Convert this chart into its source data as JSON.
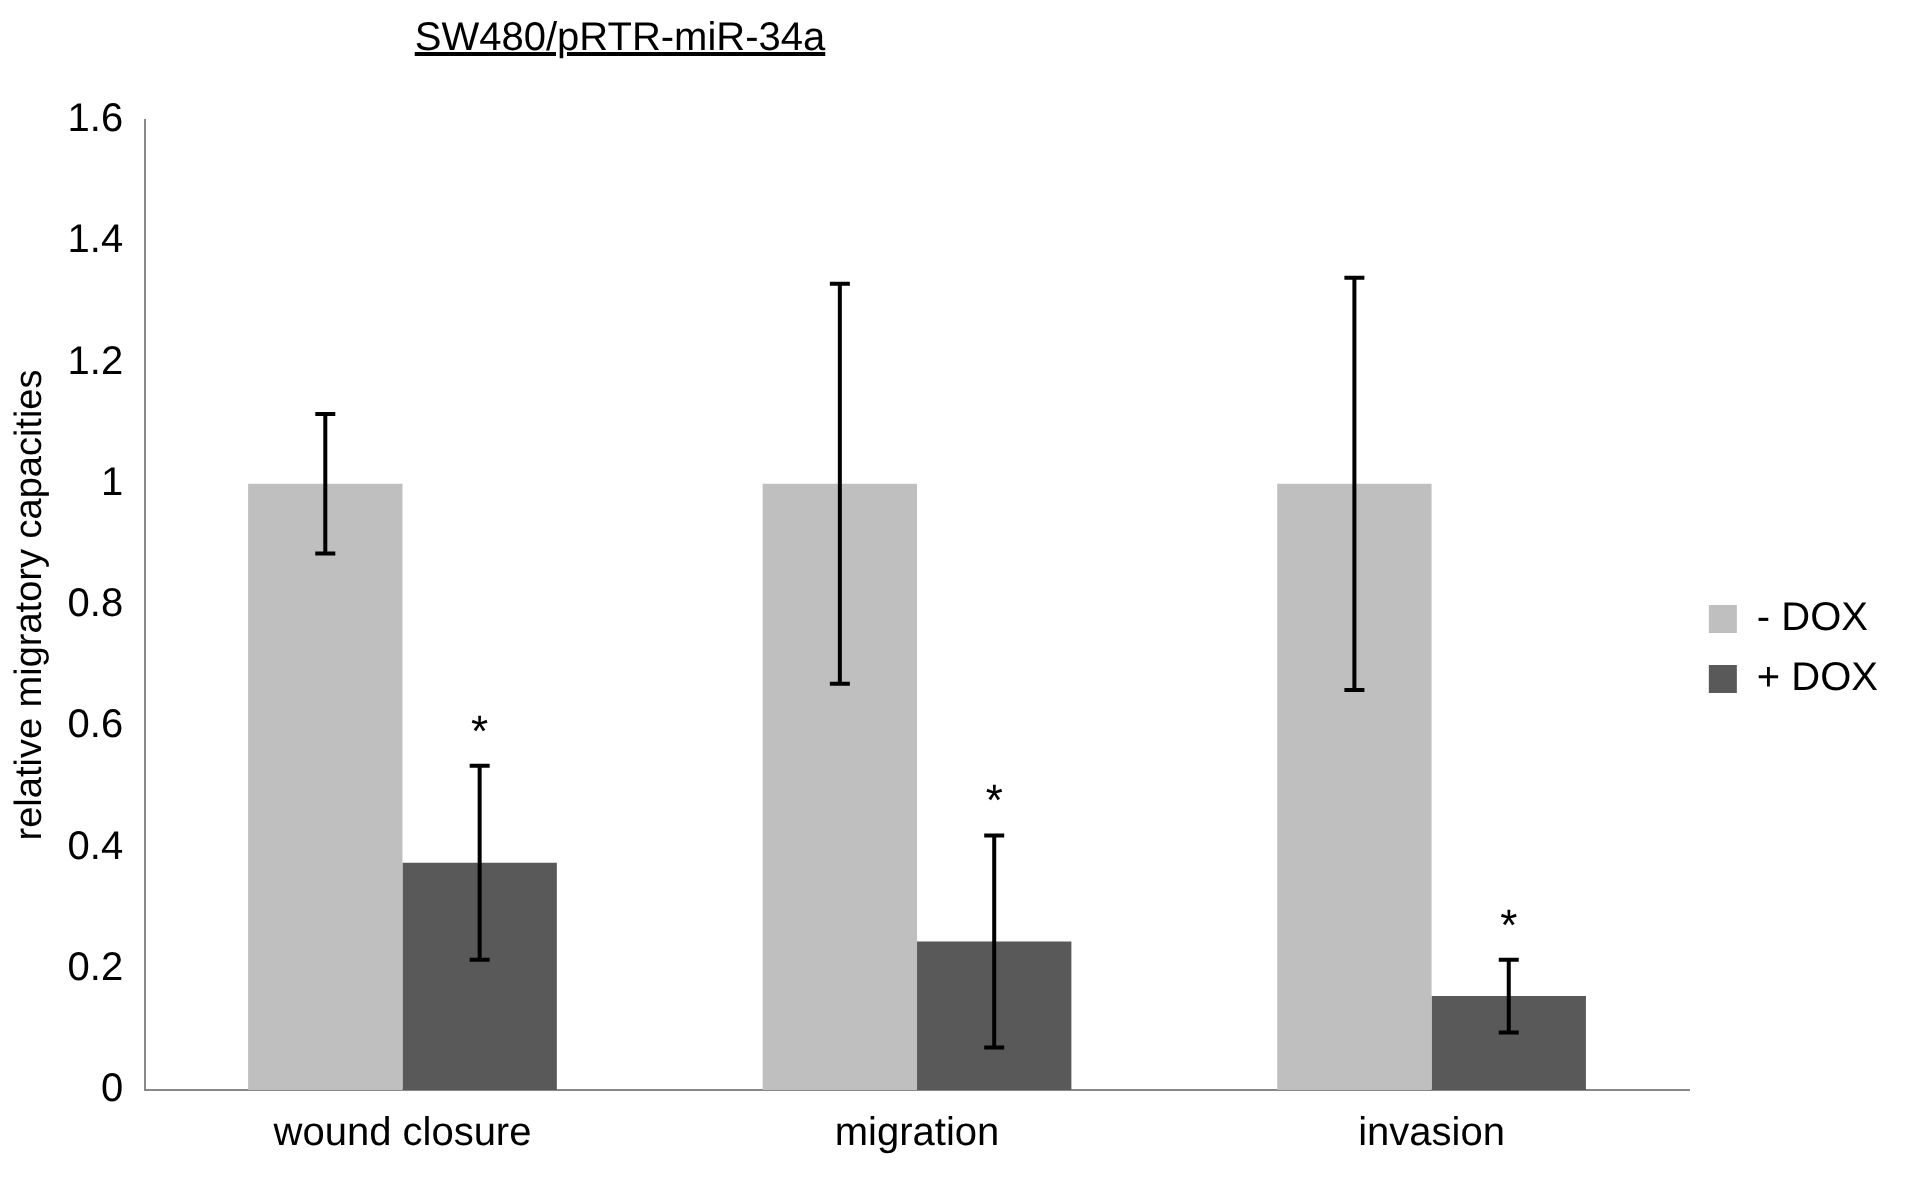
{
  "chart_data": {
    "type": "bar",
    "title": "SW480/pRTR-miR-34a",
    "ylabel": "relative migratory capacities",
    "categories": [
      "wound closure",
      "migration",
      "invasion"
    ],
    "series": [
      {
        "name": "- DOX",
        "color": "#bfbfbf",
        "values": [
          1,
          1,
          1
        ],
        "errors": [
          0.115,
          0.33,
          0.34
        ]
      },
      {
        "name": "+ DOX",
        "color": "#595959",
        "values": [
          0.375,
          0.245,
          0.155
        ],
        "errors": [
          0.16,
          0.175,
          0.06
        ]
      }
    ],
    "ylim": [
      0,
      1.6
    ],
    "yticks": [
      0,
      0.2,
      0.4,
      0.6,
      0.8,
      1,
      1.2,
      1.4,
      1.6
    ],
    "grid": false,
    "legend": "right",
    "annotations": [
      {
        "text": "*",
        "x": "wound closure",
        "y": 0.535
      },
      {
        "text": "*",
        "x": "migration",
        "y": 0.42
      },
      {
        "text": "*",
        "x": "invasion",
        "y": 0.215
      }
    ]
  }
}
